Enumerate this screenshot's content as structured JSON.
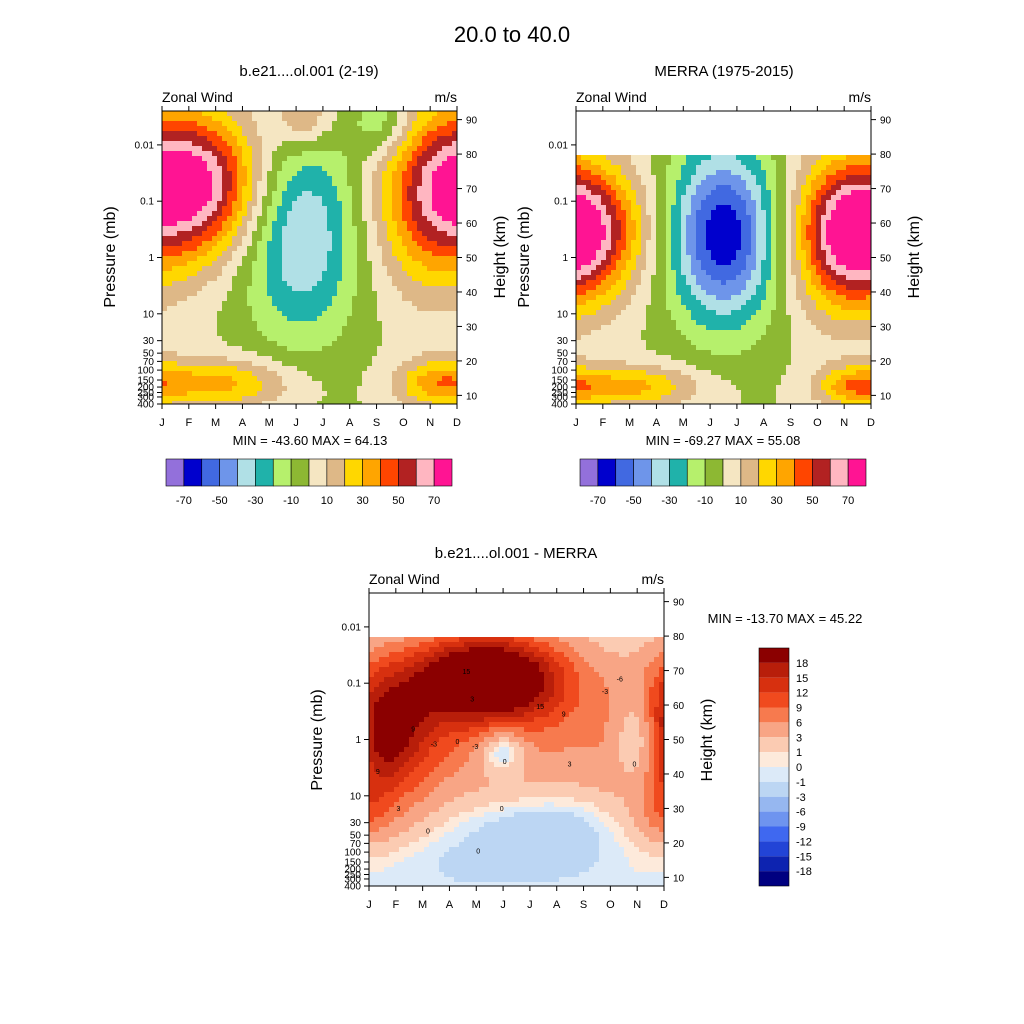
{
  "figure": {
    "title": "20.0 to  40.0"
  },
  "chart_data": [
    {
      "type": "heatmap",
      "title": "b.e21....ol.001 (2-19)",
      "left_label": "Zonal Wind",
      "right_label": "m/s",
      "ylabel": "Pressure (mb)",
      "ylabel_right": "Height (km)",
      "x_ticklabels": [
        "J",
        "F",
        "M",
        "A",
        "M",
        "J",
        "J",
        "A",
        "S",
        "O",
        "N",
        "D"
      ],
      "y_ticks": [
        {
          "p": 0.01,
          "label": "0.01"
        },
        {
          "p": 0.1,
          "label": "0.1"
        },
        {
          "p": 1,
          "label": "1"
        },
        {
          "p": 10,
          "label": "10"
        },
        {
          "p": 30,
          "label": "30"
        },
        {
          "p": 50,
          "label": "50"
        },
        {
          "p": 70,
          "label": "70"
        },
        {
          "p": 100,
          "label": "100"
        },
        {
          "p": 150,
          "label": "150"
        },
        {
          "p": 200,
          "label": "200"
        },
        {
          "p": 250,
          "label": "250"
        },
        {
          "p": 300,
          "label": "300"
        },
        {
          "p": 400,
          "label": "400"
        }
      ],
      "height_ticks": [
        {
          "km": 10,
          "label": "10"
        },
        {
          "km": 20,
          "label": "20"
        },
        {
          "km": 30,
          "label": "30"
        },
        {
          "km": 40,
          "label": "40"
        },
        {
          "km": 50,
          "label": "50"
        },
        {
          "km": 60,
          "label": "60"
        },
        {
          "km": 70,
          "label": "70"
        },
        {
          "km": 80,
          "label": "80"
        },
        {
          "km": 90,
          "label": "90"
        }
      ],
      "ylim_p": [
        400,
        0.0025
      ],
      "data_top_p": 0.0025,
      "stats": "MIN = -43.60  MAX =  64.13",
      "stats_position": "below",
      "colormap": "fill",
      "colorbar_labels": [
        "-70",
        "-50",
        "-30",
        "-10",
        "10",
        "30",
        "50",
        "70"
      ],
      "features": [
        {
          "t": 0.12,
          "z": 0.75,
          "ct": 0.16,
          "cz": 0.17,
          "a": 70
        },
        {
          "t": 0.47,
          "z": 0.58,
          "ct": 0.14,
          "cz": 0.25,
          "a": -42
        },
        {
          "t": 0.91,
          "z": 0.7,
          "ct": 0.14,
          "cz": 0.22,
          "a": 42
        },
        {
          "t": 0.2,
          "z": 0.07,
          "ct": 0.17,
          "cz": 0.06,
          "a": 33
        },
        {
          "t": 0.93,
          "z": 0.07,
          "ct": 0.1,
          "cz": 0.06,
          "a": 30
        },
        {
          "t": 0.48,
          "z": 0.98,
          "ct": 0.07,
          "cz": 0.08,
          "a": 26
        },
        {
          "t": 0.75,
          "z": 0.96,
          "ct": 0.07,
          "cz": 0.08,
          "a": -22
        }
      ]
    },
    {
      "type": "heatmap",
      "title": "MERRA (1975-2015)",
      "left_label": "Zonal Wind",
      "right_label": "m/s",
      "ylabel": "Pressure (mb)",
      "ylabel_right": "Height (km)",
      "x_ticklabels": [
        "J",
        "F",
        "M",
        "A",
        "M",
        "J",
        "J",
        "A",
        "S",
        "O",
        "N",
        "D"
      ],
      "y_ticks": [
        {
          "p": 0.01,
          "label": "0.01"
        },
        {
          "p": 0.1,
          "label": "0.1"
        },
        {
          "p": 1,
          "label": "1"
        },
        {
          "p": 10,
          "label": "10"
        },
        {
          "p": 30,
          "label": "30"
        },
        {
          "p": 50,
          "label": "50"
        },
        {
          "p": 70,
          "label": "70"
        },
        {
          "p": 100,
          "label": "100"
        },
        {
          "p": 150,
          "label": "150"
        },
        {
          "p": 200,
          "label": "200"
        },
        {
          "p": 250,
          "label": "250"
        },
        {
          "p": 300,
          "label": "300"
        },
        {
          "p": 400,
          "label": "400"
        }
      ],
      "height_ticks": [
        {
          "km": 10,
          "label": "10"
        },
        {
          "km": 20,
          "label": "20"
        },
        {
          "km": 30,
          "label": "30"
        },
        {
          "km": 40,
          "label": "40"
        },
        {
          "km": 50,
          "label": "50"
        },
        {
          "km": 60,
          "label": "60"
        },
        {
          "km": 70,
          "label": "70"
        },
        {
          "km": 80,
          "label": "80"
        },
        {
          "km": 90,
          "label": "90"
        }
      ],
      "ylim_p": [
        400,
        0.0025
      ],
      "data_top_p": 0.015,
      "stats": "MIN = -69.27  MAX =  55.08",
      "stats_position": "below",
      "colormap": "fill",
      "colorbar_labels": [
        "-70",
        "-50",
        "-30",
        "-10",
        "10",
        "30",
        "50",
        "70"
      ],
      "features": [
        {
          "t": 0.04,
          "z": 0.7,
          "ct": 0.14,
          "cz": 0.18,
          "a": 55
        },
        {
          "t": 0.5,
          "z": 0.68,
          "ct": 0.13,
          "cz": 0.25,
          "a": -68
        },
        {
          "t": 0.91,
          "z": 0.68,
          "ct": 0.13,
          "cz": 0.22,
          "a": 55
        },
        {
          "t": 0.18,
          "z": 0.07,
          "ct": 0.17,
          "cz": 0.06,
          "a": 33
        },
        {
          "t": 0.94,
          "z": 0.07,
          "ct": 0.09,
          "cz": 0.06,
          "a": 30
        }
      ]
    },
    {
      "type": "heatmap",
      "title": "b.e21....ol.001 - MERRA",
      "left_label": "Zonal Wind",
      "right_label": "m/s",
      "ylabel": "Pressure (mb)",
      "ylabel_right": "Height (km)",
      "x_ticklabels": [
        "J",
        "F",
        "M",
        "A",
        "M",
        "J",
        "J",
        "A",
        "S",
        "O",
        "N",
        "D"
      ],
      "y_ticks": [
        {
          "p": 0.01,
          "label": "0.01"
        },
        {
          "p": 0.1,
          "label": "0.1"
        },
        {
          "p": 1,
          "label": "1"
        },
        {
          "p": 10,
          "label": "10"
        },
        {
          "p": 30,
          "label": "30"
        },
        {
          "p": 50,
          "label": "50"
        },
        {
          "p": 70,
          "label": "70"
        },
        {
          "p": 100,
          "label": "100"
        },
        {
          "p": 150,
          "label": "150"
        },
        {
          "p": 200,
          "label": "200"
        },
        {
          "p": 250,
          "label": "250"
        },
        {
          "p": 300,
          "label": "300"
        },
        {
          "p": 400,
          "label": "400"
        }
      ],
      "height_ticks": [
        {
          "km": 10,
          "label": "10"
        },
        {
          "km": 20,
          "label": "20"
        },
        {
          "km": 30,
          "label": "30"
        },
        {
          "km": 40,
          "label": "40"
        },
        {
          "km": 50,
          "label": "50"
        },
        {
          "km": 60,
          "label": "60"
        },
        {
          "km": 70,
          "label": "70"
        },
        {
          "km": 80,
          "label": "80"
        },
        {
          "km": 90,
          "label": "90"
        }
      ],
      "ylim_p": [
        400,
        0.0025
      ],
      "data_top_p": 0.015,
      "stats": "MIN = -13.70  MAX =  45.22",
      "stats_position": "right",
      "colormap": "diff",
      "colorbar_labels": [
        "18",
        "15",
        "12",
        "9",
        "6",
        "3",
        "1",
        "0",
        "-1",
        "-3",
        "-6",
        "-9",
        "-12",
        "-15",
        "-18"
      ],
      "contour_labels": [
        "15",
        "9",
        "3",
        "-3",
        "0",
        "-3",
        "0",
        "15",
        "9",
        "3",
        "0",
        "-3",
        "-6",
        "0",
        "9",
        "3",
        "0",
        "0"
      ],
      "features": [
        {
          "t": 0.4,
          "z": 0.84,
          "ct": 0.18,
          "cz": 0.12,
          "a": 26
        },
        {
          "t": 0.03,
          "z": 0.62,
          "ct": 0.12,
          "cz": 0.18,
          "a": 16
        },
        {
          "t": 0.35,
          "z": 0.62,
          "ct": 0.5,
          "cz": 0.2,
          "a": 7
        },
        {
          "t": 0.0,
          "z": 0.3,
          "ct": 0.14,
          "cz": 0.14,
          "a": 3
        },
        {
          "t": 0.45,
          "z": 0.55,
          "ct": 0.06,
          "cz": 0.07,
          "a": -8
        },
        {
          "t": 0.92,
          "z": 0.6,
          "ct": 0.06,
          "cz": 0.14,
          "a": -13
        },
        {
          "t": 0.6,
          "z": 0.25,
          "ct": 0.2,
          "cz": 0.09,
          "a": -3
        },
        {
          "t": 0.4,
          "z": 0.1,
          "ct": 0.4,
          "cz": 0.1,
          "a": -1.5
        },
        {
          "t": 1.0,
          "z": 0.3,
          "ct": 0.05,
          "cz": 0.08,
          "a": 4
        }
      ]
    }
  ]
}
